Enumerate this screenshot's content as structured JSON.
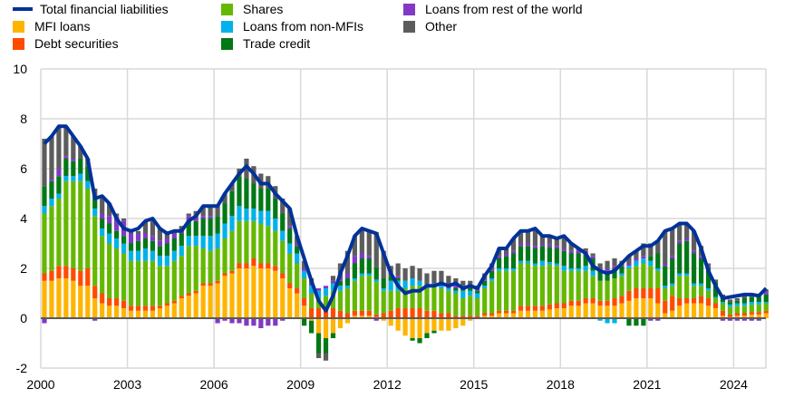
{
  "chart_data": {
    "type": "bar",
    "stacked": true,
    "ylim": [
      -2,
      10
    ],
    "yticks": [
      "-2",
      "0",
      "2",
      "4",
      "6",
      "8",
      "10"
    ],
    "xticks": [
      "2000",
      "2003",
      "2006",
      "2009",
      "2012",
      "2015",
      "2018",
      "2021",
      "2024"
    ],
    "xrange": [
      "2000Q1",
      "2025Q1"
    ],
    "grid": true,
    "legend_placement": "top",
    "line": {
      "name": "Total financial liabilities",
      "color": "#003299",
      "values": [
        7.0,
        7.3,
        7.7,
        7.7,
        7.3,
        6.9,
        6.4,
        4.8,
        4.9,
        4.6,
        4.0,
        3.6,
        3.5,
        3.6,
        3.9,
        4.0,
        3.6,
        3.4,
        3.5,
        3.5,
        3.9,
        4.1,
        4.5,
        4.5,
        4.5,
        5.0,
        5.4,
        5.8,
        6.1,
        5.8,
        5.4,
        5.4,
        5.0,
        4.7,
        4.4,
        3.3,
        2.4,
        1.5,
        0.7,
        0.3,
        0.9,
        1.8,
        2.5,
        3.3,
        3.6,
        3.5,
        3.4,
        2.6,
        1.8,
        1.3,
        1.0,
        1.1,
        1.1,
        1.3,
        1.3,
        1.4,
        1.3,
        1.4,
        1.2,
        1.3,
        1.2,
        1.7,
        2.1,
        2.8,
        2.8,
        3.2,
        3.5,
        3.5,
        3.6,
        3.3,
        3.3,
        3.2,
        3.3,
        3.0,
        2.8,
        2.6,
        2.1,
        1.9,
        1.8,
        1.9,
        2.2,
        2.5,
        2.7,
        2.9,
        2.9,
        3.1,
        3.5,
        3.6,
        3.8,
        3.8,
        3.5,
        2.8,
        1.9,
        1.3,
        0.8,
        0.85,
        0.9,
        0.95,
        0.95,
        0.9,
        1.2
      ]
    },
    "series": [
      {
        "name": "MFI loans",
        "color": "#FFB400",
        "values": [
          1.5,
          1.5,
          1.6,
          1.6,
          1.5,
          1.3,
          1.3,
          0.8,
          0.6,
          0.5,
          0.5,
          0.4,
          0.3,
          0.3,
          0.3,
          0.3,
          0.4,
          0.5,
          0.6,
          0.8,
          0.9,
          1.0,
          1.3,
          1.3,
          1.4,
          1.7,
          1.8,
          2.0,
          2.0,
          2.1,
          2.0,
          2.0,
          1.9,
          1.6,
          1.2,
          1.0,
          0.5,
          -0.1,
          -0.6,
          -0.8,
          -0.6,
          -0.4,
          -0.2,
          0.1,
          0.1,
          0.1,
          0.05,
          -0.1,
          -0.3,
          -0.5,
          -0.7,
          -0.8,
          -0.8,
          -0.6,
          -0.5,
          -0.5,
          -0.5,
          -0.4,
          -0.3,
          -0.1,
          0,
          0.1,
          0.1,
          0.2,
          0.2,
          0.2,
          0.3,
          0.3,
          0.3,
          0.3,
          0.35,
          0.4,
          0.4,
          0.5,
          0.5,
          0.6,
          0.6,
          0.5,
          0.5,
          0.5,
          0.6,
          0.7,
          0.8,
          0.8,
          0.8,
          0.6,
          0.2,
          0.3,
          0.5,
          0.6,
          0.6,
          0.6,
          0.5,
          0.4,
          0.1,
          0.05,
          0.1,
          0.1,
          0.15,
          0.15,
          0.2
        ]
      },
      {
        "name": "Debt securities",
        "color": "#FF4B00",
        "values": [
          0.3,
          0.4,
          0.5,
          0.5,
          0.5,
          0.6,
          0.7,
          0.5,
          0.4,
          0.3,
          0.3,
          0.3,
          0.2,
          0.2,
          0.2,
          0.2,
          0.1,
          0.1,
          0.1,
          0.1,
          0.1,
          0.1,
          0.1,
          0.1,
          0.1,
          0.1,
          0.1,
          0.2,
          0.2,
          0.3,
          0.2,
          0.2,
          0.2,
          0.2,
          0.2,
          0.2,
          0.3,
          0.4,
          0.4,
          0.4,
          0.4,
          0.3,
          0.2,
          0.2,
          0.2,
          0.2,
          0.1,
          0.2,
          0.3,
          0.4,
          0.4,
          0.4,
          0.4,
          0.3,
          0.3,
          0.2,
          0.2,
          0.1,
          0.1,
          0.1,
          0.1,
          0.1,
          0.1,
          0.1,
          0.1,
          0.1,
          0.2,
          0.2,
          0.2,
          0.2,
          0.2,
          0.2,
          0.2,
          0.2,
          0.2,
          0.2,
          0.2,
          0.2,
          0.2,
          0.3,
          0.3,
          0.4,
          0.4,
          0.4,
          0.4,
          0.6,
          0.5,
          0.6,
          0.3,
          0.2,
          0.2,
          0.3,
          0.3,
          0.2,
          0.2,
          0.1,
          0.1,
          0.1,
          0.1,
          0.1,
          0.1
        ]
      },
      {
        "name": "Shares",
        "color": "#65B800",
        "values": [
          2.4,
          2.6,
          2.7,
          3.4,
          3.5,
          3.6,
          3.2,
          2.8,
          2.3,
          2.2,
          2.0,
          1.9,
          1.8,
          1.8,
          1.8,
          1.8,
          1.6,
          1.5,
          1.6,
          1.6,
          1.9,
          1.8,
          1.4,
          1.3,
          1.3,
          1.4,
          1.6,
          1.7,
          1.7,
          1.5,
          1.6,
          1.5,
          1.4,
          1.3,
          1.2,
          1.0,
          0.8,
          0.6,
          0.4,
          0.5,
          0.7,
          0.8,
          1.0,
          1.2,
          1.4,
          1.4,
          1.3,
          0.9,
          0.8,
          0.7,
          0.8,
          0.9,
          0.9,
          0.9,
          1.0,
          1.0,
          0.9,
          0.9,
          0.7,
          0.8,
          0.7,
          1.0,
          1.3,
          1.6,
          1.6,
          1.6,
          1.7,
          1.7,
          1.6,
          1.6,
          1.6,
          1.5,
          1.3,
          1.2,
          1.2,
          1.1,
          0.9,
          0.8,
          0.8,
          0.8,
          0.8,
          0.9,
          0.9,
          1.0,
          0.9,
          0.7,
          0.5,
          0.4,
          0.9,
          0.9,
          0.5,
          0.4,
          0.3,
          0.2,
          0.3,
          0.3,
          0.3,
          0.3,
          0.3,
          0.3,
          0.3
        ]
      },
      {
        "name": "Loans from non-MFIs",
        "color": "#00B1EA",
        "values": [
          0.3,
          0.3,
          0.2,
          0.2,
          0.2,
          0.3,
          0.3,
          0.3,
          0.3,
          0.4,
          0.4,
          0.4,
          0.4,
          0.4,
          0.5,
          0.4,
          0.4,
          0.4,
          0.4,
          0.4,
          0.4,
          0.4,
          0.5,
          0.6,
          0.6,
          0.6,
          0.6,
          0.6,
          0.5,
          0.5,
          0.5,
          0.6,
          0.5,
          0.4,
          0.4,
          0.4,
          0.3,
          0.3,
          0.3,
          0.3,
          0.3,
          0.2,
          0.1,
          0.1,
          0.1,
          0.1,
          0.1,
          0.1,
          0.4,
          0.4,
          0.3,
          0.3,
          0.2,
          0.1,
          0.1,
          0.1,
          0.1,
          0.1,
          0.3,
          0.2,
          0.2,
          0.1,
          0.1,
          0.1,
          0.1,
          0.1,
          0.1,
          0.1,
          0.1,
          0.2,
          0.1,
          0.1,
          0.2,
          0.1,
          0.1,
          0.2,
          0.2,
          -0.1,
          -0.2,
          -0.2,
          0.1,
          0.1,
          0.2,
          0.2,
          0.2,
          0.1,
          0.1,
          0.1,
          0.1,
          0.1,
          0.1,
          0.1,
          0.1,
          0.05,
          0.05,
          0.1,
          0.1,
          0.1,
          0.1,
          0.1,
          0.05
        ]
      },
      {
        "name": "Trade credit",
        "color": "#007816",
        "values": [
          0.8,
          0.7,
          0.7,
          0.7,
          0.6,
          0.6,
          0.6,
          0.5,
          0.4,
          0.4,
          0.3,
          0.3,
          0.3,
          0.4,
          0.4,
          0.4,
          0.4,
          0.5,
          0.5,
          0.5,
          0.6,
          0.6,
          0.7,
          0.7,
          0.7,
          0.8,
          1.0,
          1.2,
          1.2,
          1.0,
          0.9,
          0.9,
          0.8,
          0.7,
          0.6,
          0.3,
          -0.3,
          -0.5,
          -0.8,
          -0.6,
          -0.2,
          0.2,
          0.3,
          0.6,
          0.6,
          0.6,
          0.5,
          0.4,
          0.2,
          0.1,
          0,
          -0.1,
          -0.2,
          -0.2,
          -0.1,
          0,
          0,
          0.1,
          0.1,
          0.1,
          0.1,
          0.2,
          0.3,
          0.4,
          0.5,
          0.6,
          0.6,
          0.6,
          0.6,
          0.6,
          0.6,
          0.6,
          0.6,
          0.6,
          0.6,
          0.5,
          0.5,
          0.4,
          0.4,
          0.4,
          0.3,
          -0.3,
          -0.3,
          -0.3,
          0.2,
          0.6,
          0.8,
          1.0,
          1.2,
          1.3,
          1.2,
          1.0,
          0.8,
          0.6,
          0.2,
          0.1,
          0.1,
          0.2,
          0.2,
          0.2,
          0.3
        ]
      },
      {
        "name": "Loans from rest of the world",
        "color": "#8139C6",
        "values": [
          -0.2,
          0.1,
          0.3,
          0.1,
          0.1,
          0,
          0,
          -0.1,
          0.2,
          0.3,
          0.6,
          0.6,
          0.4,
          0.3,
          0.2,
          0.2,
          0.2,
          0.2,
          0.2,
          0.2,
          0.2,
          0.2,
          0.1,
          0.1,
          -0.2,
          -0.1,
          -0.2,
          -0.2,
          -0.3,
          -0.3,
          -0.4,
          -0.3,
          -0.3,
          -0.1,
          0.1,
          0.1,
          0.1,
          0.1,
          0.1,
          0.1,
          0.1,
          0.1,
          0.2,
          0.3,
          0.2,
          0.1,
          -0.1,
          0,
          0,
          0.1,
          0,
          0,
          0,
          0,
          0,
          0.1,
          0.1,
          0.1,
          0.1,
          0.1,
          0.1,
          0.1,
          0.1,
          0.1,
          0.1,
          0.1,
          0.1,
          0.1,
          0.1,
          0.1,
          0.1,
          0.1,
          0.1,
          0.1,
          0.1,
          0.1,
          0.1,
          0.1,
          0.1,
          0.1,
          0.1,
          0.1,
          0.1,
          0.1,
          -0.1,
          -0.1,
          0.1,
          0.1,
          0.1,
          0.1,
          0.1,
          0.1,
          0.1,
          0,
          -0.1,
          -0.1,
          -0.1,
          -0.1,
          -0.1,
          -0.1,
          0.1
        ]
      },
      {
        "name": "Other",
        "color": "#5C5C5C",
        "values": [
          1.9,
          1.7,
          1.7,
          1.2,
          0.9,
          0.5,
          0.3,
          0.3,
          0.7,
          0.5,
          0.1,
          0.1,
          0.1,
          0.1,
          0.5,
          0.7,
          0.5,
          0.2,
          0.1,
          0.1,
          0.1,
          0.2,
          0.4,
          0.4,
          0.4,
          0.4,
          0.3,
          0.3,
          0.8,
          0.7,
          0.6,
          0.5,
          0.5,
          0.6,
          0.7,
          0.3,
          0.3,
          0.2,
          -0.2,
          -0.3,
          0.2,
          0.6,
          0.9,
          0.8,
          1.0,
          1.0,
          1.4,
          1.1,
          0.4,
          0.5,
          0.5,
          0.5,
          0.5,
          0.5,
          0.5,
          0.5,
          0.4,
          0.3,
          0.2,
          0.2,
          0.1,
          0.2,
          0.2,
          0.3,
          0.2,
          0.5,
          0.5,
          0.5,
          0.7,
          0.3,
          0.3,
          0.3,
          0.5,
          0.3,
          0.1,
          0.1,
          0.1,
          0.2,
          0.3,
          0.3,
          0.1,
          0.3,
          0.3,
          0.5,
          0.5,
          0.5,
          1.3,
          1.1,
          0.7,
          0.6,
          0.8,
          0.4,
          0.1,
          0.1,
          0.1,
          0.1,
          0.1,
          0.1,
          0.1,
          0.1,
          0.1
        ]
      }
    ]
  }
}
